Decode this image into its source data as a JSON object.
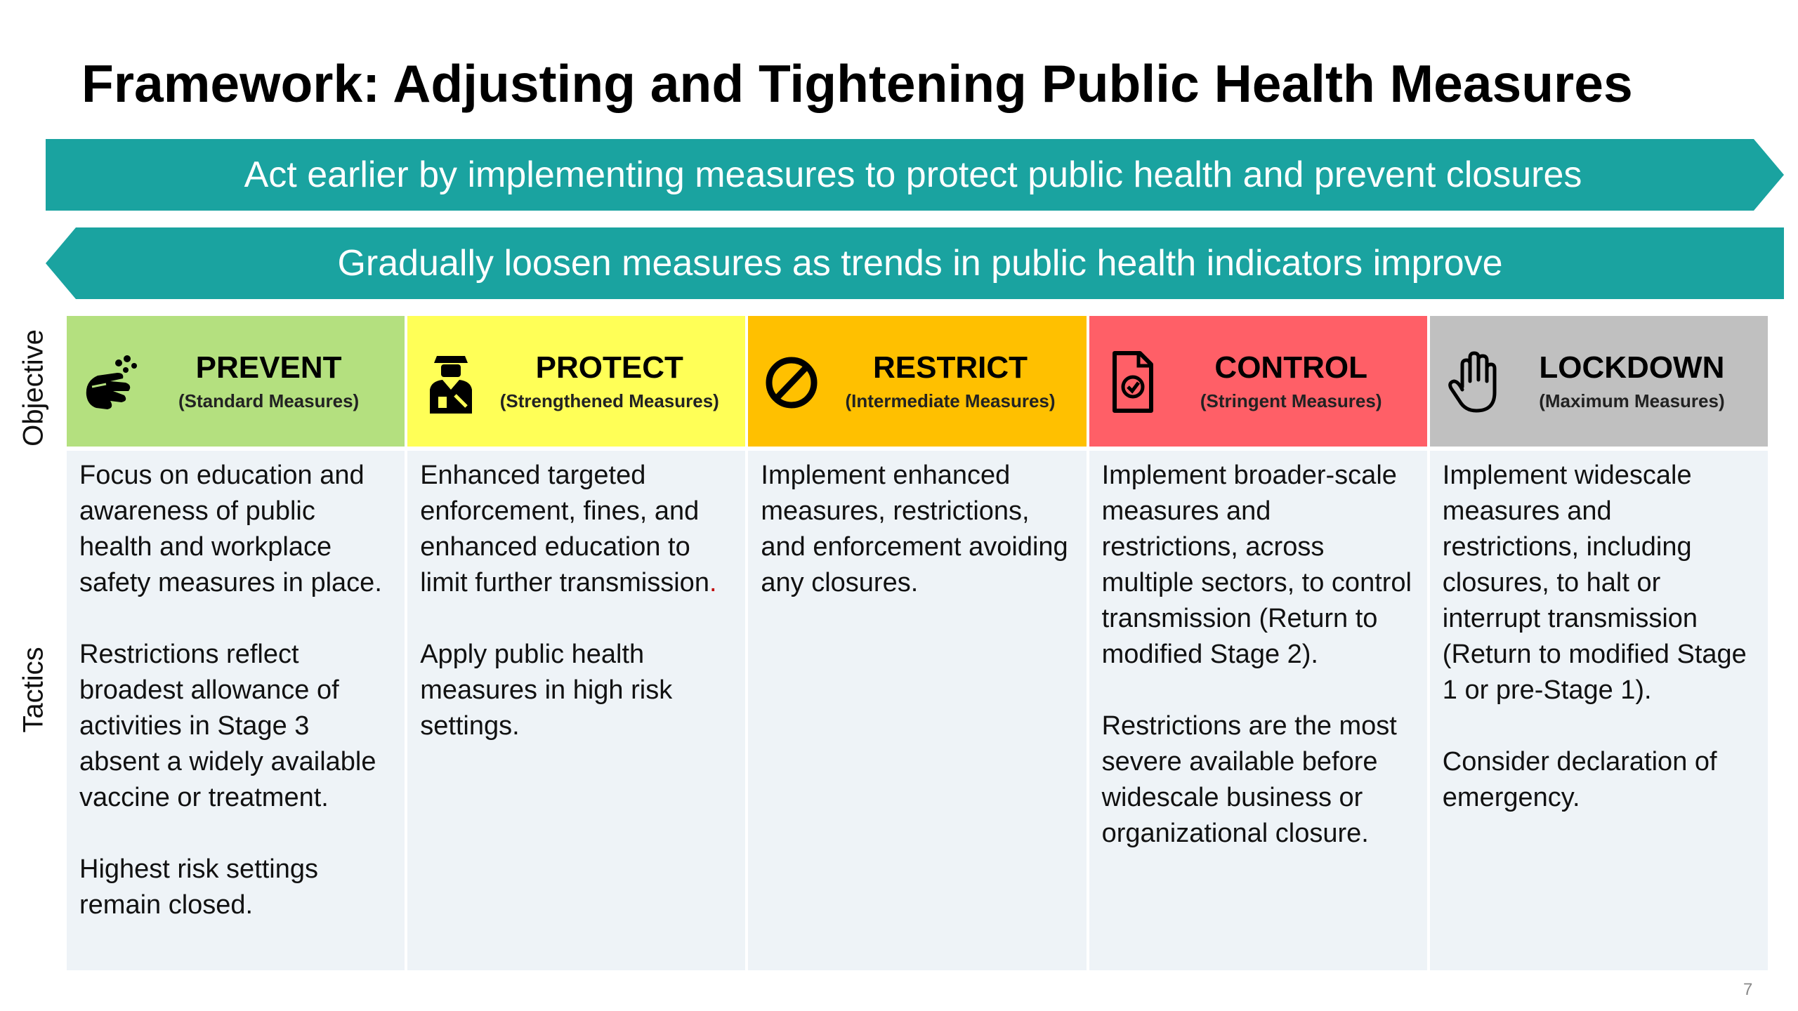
{
  "title": "Framework: Adjusting and Tightening Public Health Measures",
  "banners": {
    "forward": "Act earlier by implementing measures to protect public health and prevent closures",
    "backward": "Gradually loosen measures as trends in public health indicators improve"
  },
  "side_labels": {
    "objective": "Objective",
    "tactics": "Tactics"
  },
  "colors": {
    "banner": "#1aa3a0",
    "prevent": "#b4e07f",
    "protect": "#ffff57",
    "restrict": "#ffc000",
    "control": "#ff5f67",
    "lockdown": "#c0c0c0",
    "tactics_bg": "#eef3f7"
  },
  "levels": [
    {
      "name": "PREVENT",
      "sub": "(Standard Measures)",
      "icon": "handwashing-icon",
      "tactics": [
        "Focus on education and awareness of public health and workplace safety measures in place.",
        "Restrictions reflect broadest allowance of activities in Stage 3 absent a widely available vaccine or treatment.",
        "Highest risk settings remain closed."
      ]
    },
    {
      "name": "PROTECT",
      "sub": "(Strengthened Measures)",
      "icon": "officer-icon",
      "tactics": [
        "Enhanced targeted enforcement, fines, and enhanced education to limit further transmission",
        "Apply public health measures in high risk settings."
      ]
    },
    {
      "name": "RESTRICT",
      "sub": "(Intermediate Measures)",
      "icon": "prohibited-icon",
      "tactics": [
        "Implement enhanced measures, restrictions, and enforcement avoiding any closures."
      ]
    },
    {
      "name": "CONTROL",
      "sub": "(Stringent Measures)",
      "icon": "checked-document-icon",
      "tactics": [
        "Implement broader-scale measures and restrictions, across multiple sectors, to control transmission (Return to modified Stage 2).",
        "Restrictions are the most severe available before widescale business or organizational closure."
      ]
    },
    {
      "name": "LOCKDOWN",
      "sub": "(Maximum Measures)",
      "icon": "raised-hand-icon",
      "tactics": [
        "Implement widescale measures and restrictions, including closures, to halt or interrupt transmission (Return to modified Stage 1 or pre-Stage 1).",
        "Consider declaration of emergency."
      ]
    }
  ],
  "protect_trailing_period": ".",
  "page_number": "7"
}
